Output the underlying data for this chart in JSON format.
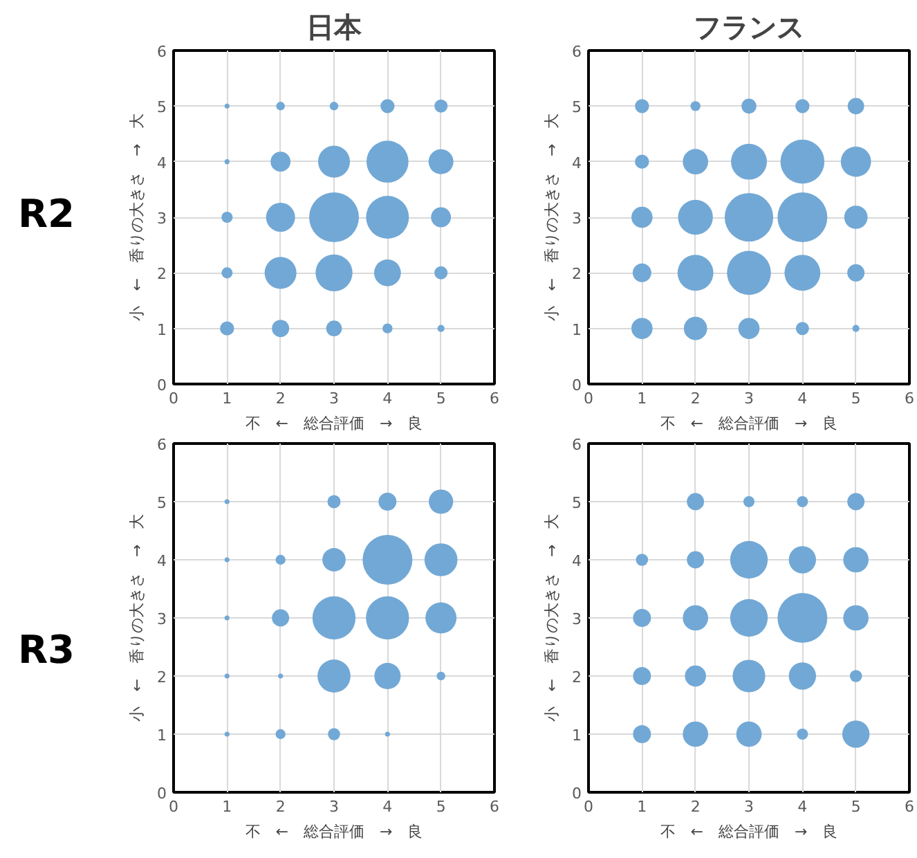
{
  "chart_data": [
    {
      "type": "bubble",
      "title": "日本",
      "annotations": [
        "R2"
      ],
      "xlabel": "不　←　総合評価　→　良",
      "ylabel": "小　←　香りの大きさ　→　大",
      "xlim": [
        0,
        6
      ],
      "ylim": [
        0,
        6
      ],
      "xticks": [
        0,
        1,
        2,
        3,
        4,
        5,
        6
      ],
      "yticks": [
        0,
        1,
        2,
        3,
        4,
        5,
        6
      ],
      "grid": true,
      "color": "#72a8d5",
      "x": [
        1,
        2,
        3,
        4,
        5,
        1,
        2,
        3,
        4,
        5,
        1,
        2,
        3,
        4,
        5,
        1,
        2,
        3,
        4,
        5,
        1,
        2,
        3,
        4,
        5
      ],
      "values": [
        5,
        5,
        5,
        5,
        5,
        4,
        4,
        4,
        4,
        4,
        3,
        3,
        3,
        3,
        3,
        2,
        2,
        2,
        2,
        2,
        1,
        1,
        1,
        1,
        1
      ],
      "sizes": [
        0.01,
        0.03,
        0.03,
        0.08,
        0.07,
        0.01,
        0.16,
        0.41,
        0.71,
        0.25,
        0.05,
        0.34,
        1,
        0.74,
        0.16,
        0.05,
        0.41,
        0.55,
        0.29,
        0.07,
        0.08,
        0.12,
        0.1,
        0.04,
        0.02
      ]
    },
    {
      "type": "bubble",
      "title": "フランス",
      "xlabel": "不　←　総合評価　→　良",
      "ylabel": "小　←　香りの大きさ　→　大",
      "xlim": [
        0,
        6
      ],
      "ylim": [
        0,
        6
      ],
      "xticks": [
        0,
        1,
        2,
        3,
        4,
        5,
        6
      ],
      "yticks": [
        0,
        1,
        2,
        3,
        4,
        5,
        6
      ],
      "grid": true,
      "color": "#72a8d5",
      "x": [
        1,
        2,
        3,
        4,
        5,
        1,
        2,
        3,
        4,
        5,
        1,
        2,
        3,
        4,
        5,
        1,
        2,
        3,
        4,
        5,
        1,
        2,
        3,
        4,
        5
      ],
      "values": [
        5,
        5,
        5,
        5,
        5,
        4,
        4,
        4,
        4,
        4,
        3,
        3,
        3,
        3,
        3,
        2,
        2,
        2,
        2,
        2,
        1,
        1,
        1,
        1,
        1
      ],
      "sizes": [
        0.08,
        0.04,
        0.09,
        0.08,
        0.11,
        0.08,
        0.26,
        0.52,
        0.78,
        0.37,
        0.18,
        0.49,
        0.95,
        1,
        0.22,
        0.14,
        0.52,
        0.78,
        0.52,
        0.12,
        0.18,
        0.22,
        0.18,
        0.07,
        0.02
      ]
    },
    {
      "type": "bubble",
      "annotations": [
        "R3"
      ],
      "xlabel": "不　←　総合評価　→　良",
      "ylabel": "小　←　香りの大きさ　→　大",
      "xlim": [
        0,
        6
      ],
      "ylim": [
        0,
        6
      ],
      "xticks": [
        0,
        1,
        2,
        3,
        4,
        5,
        6
      ],
      "yticks": [
        0,
        1,
        2,
        3,
        4,
        5,
        6
      ],
      "grid": true,
      "color": "#72a8d5",
      "x": [
        1,
        3,
        4,
        5,
        1,
        2,
        3,
        4,
        5,
        1,
        2,
        3,
        4,
        5,
        1,
        2,
        3,
        4,
        5,
        1,
        2,
        3,
        4
      ],
      "values": [
        5,
        5,
        5,
        5,
        4,
        4,
        4,
        4,
        4,
        3,
        3,
        3,
        3,
        3,
        2,
        2,
        2,
        2,
        2,
        1,
        1,
        1,
        1
      ],
      "sizes": [
        0.01,
        0.07,
        0.13,
        0.24,
        0.01,
        0.04,
        0.22,
        1,
        0.44,
        0.01,
        0.12,
        0.75,
        0.75,
        0.39,
        0.01,
        0.01,
        0.44,
        0.28,
        0.03,
        0.01,
        0.04,
        0.06,
        0.01
      ]
    },
    {
      "type": "bubble",
      "xlabel": "不　←　総合評価　→　良",
      "ylabel": "小　←　香りの大きさ　→　大",
      "xlim": [
        0,
        6
      ],
      "ylim": [
        0,
        6
      ],
      "xticks": [
        0,
        1,
        2,
        3,
        4,
        5,
        6
      ],
      "yticks": [
        0,
        1,
        2,
        3,
        4,
        5,
        6
      ],
      "grid": true,
      "color": "#72a8d5",
      "x": [
        2,
        3,
        4,
        5,
        1,
        2,
        3,
        4,
        5,
        1,
        2,
        3,
        4,
        5,
        1,
        2,
        3,
        4,
        5,
        1,
        2,
        3,
        4,
        5
      ],
      "values": [
        5,
        5,
        5,
        5,
        4,
        4,
        4,
        4,
        4,
        3,
        3,
        3,
        3,
        3,
        2,
        2,
        2,
        2,
        2,
        1,
        1,
        1,
        1,
        1
      ],
      "sizes": [
        0.12,
        0.05,
        0.05,
        0.12,
        0.06,
        0.12,
        0.57,
        0.3,
        0.26,
        0.13,
        0.26,
        0.57,
        1,
        0.26,
        0.13,
        0.18,
        0.43,
        0.3,
        0.06,
        0.13,
        0.26,
        0.26,
        0.05,
        0.3
      ]
    }
  ]
}
